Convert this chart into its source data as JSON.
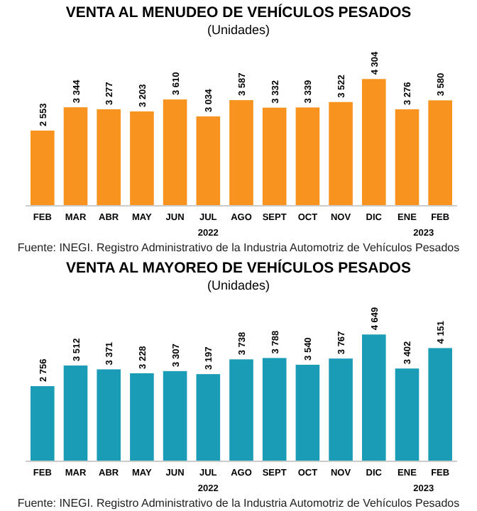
{
  "chart_data": [
    {
      "type": "bar",
      "title": "VENTA AL MENUDEO DE VEHÍCULOS PESADOS",
      "subtitle": "(Unidades)",
      "categories": [
        "FEB",
        "MAR",
        "ABR",
        "MAY",
        "JUN",
        "JUL",
        "AGO",
        "SEPT",
        "OCT",
        "NOV",
        "DIC",
        "ENE",
        "FEB"
      ],
      "values": [
        2553,
        3344,
        3277,
        3203,
        3610,
        3034,
        3587,
        3332,
        3339,
        3522,
        4304,
        3276,
        3580
      ],
      "color": "#f7931e",
      "data_labels": true,
      "value_labels": [
        "2 553",
        "3 344",
        "3 277",
        "3 203",
        "3 610",
        "3 034",
        "3 587",
        "3 332",
        "3 339",
        "3 522",
        "4 304",
        "3 276",
        "3 580"
      ],
      "annotations": [
        "2022",
        "2023",
        "Fuente: INEGI. Registro Administrativo de la Industria Automotriz de Vehículos Pesados"
      ]
    },
    {
      "type": "bar",
      "title": "VENTA AL MAYOREO DE VEHÍCULOS PESADOS",
      "subtitle": "(Unidades)",
      "categories": [
        "FEB",
        "MAR",
        "ABR",
        "MAY",
        "JUN",
        "JUL",
        "AGO",
        "SEPT",
        "OCT",
        "NOV",
        "DIC",
        "ENE",
        "FEB"
      ],
      "values": [
        2756,
        3512,
        3371,
        3228,
        3307,
        3197,
        3738,
        3788,
        3540,
        3767,
        4649,
        3402,
        4151
      ],
      "color": "#1b9cb6",
      "data_labels": true,
      "value_labels": [
        "2 756",
        "3 512",
        "3 371",
        "3 228",
        "3 307",
        "3 197",
        "3 738",
        "3 788",
        "3 540",
        "3 767",
        "4 649",
        "3 402",
        "4 151"
      ],
      "annotations": [
        "2022",
        "2023",
        "Fuente: INEGI. Registro Administrativo de la Industria Automotriz de Vehículos Pesados"
      ]
    }
  ]
}
